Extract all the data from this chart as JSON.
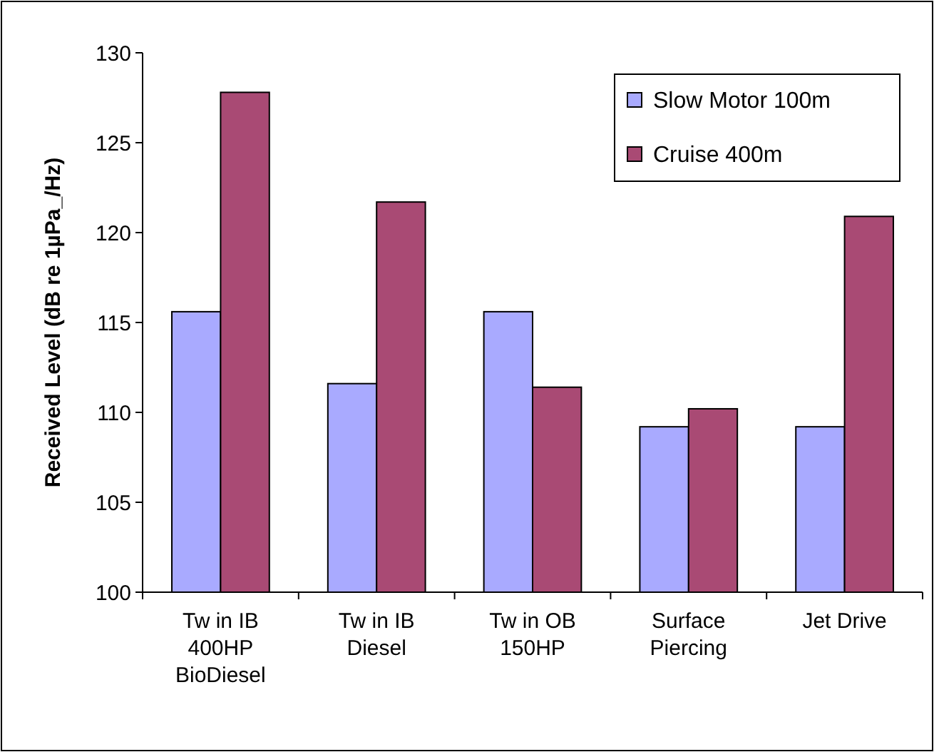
{
  "chart_data": {
    "type": "bar",
    "ylabel": "Received Level (dB re 1µPa_/Hz)",
    "categories": [
      "Tw in IB 400HP BioDiesel",
      "Tw in IB Diesel",
      "Tw in OB 150HP",
      "Surface Piercing",
      "Jet Drive"
    ],
    "series": [
      {
        "name": "Slow  Motor 100m",
        "color": "#a9aaff",
        "values": [
          115.6,
          111.6,
          115.6,
          109.2,
          109.2
        ]
      },
      {
        "name": "Cruise 400m",
        "color": "#a94a74",
        "values": [
          127.8,
          121.7,
          111.4,
          110.2,
          120.9
        ]
      }
    ],
    "ylim": [
      100,
      130
    ],
    "yticks": [
      100,
      105,
      110,
      115,
      120,
      125,
      130
    ],
    "grid": false,
    "legend": "top right"
  }
}
